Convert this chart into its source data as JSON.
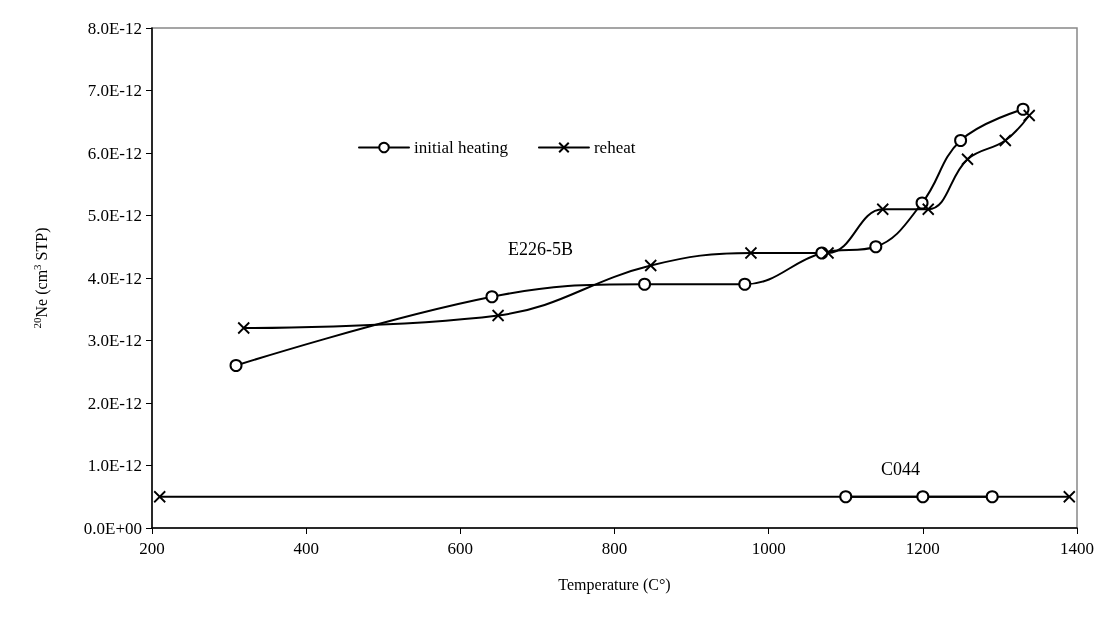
{
  "chart_data": {
    "type": "line",
    "xlabel": "Temperature (C°)",
    "ylabel": "$^{20}$Ne (cm$^{3}$ STP)",
    "xlim": [
      200,
      1400
    ],
    "xticks": [
      200,
      400,
      600,
      800,
      1000,
      1200,
      1400
    ],
    "ylim": [
      0,
      8e-12
    ],
    "yticks": [
      {
        "value": 0,
        "label": "0.0E+00"
      },
      {
        "value": 1e-12,
        "label": "1.0E-12"
      },
      {
        "value": 2e-12,
        "label": "2.0E-12"
      },
      {
        "value": 3e-12,
        "label": "3.0E-12"
      },
      {
        "value": 4e-12,
        "label": "4.0E-12"
      },
      {
        "value": 5e-12,
        "label": "5.0E-12"
      },
      {
        "value": 6e-12,
        "label": "6.0E-12"
      },
      {
        "value": 7e-12,
        "label": "7.0E-12"
      },
      {
        "value": 8e-12,
        "label": "8.0E-12"
      }
    ],
    "grid": false,
    "legend": "top",
    "line_style": "solid",
    "series": [
      {
        "name": "initial heating",
        "color": "#000000",
        "marker": "circle",
        "x": [
          309,
          641,
          839,
          969,
          1069,
          1139,
          1199,
          1249,
          1330
        ],
        "values": [
          2.6e-12,
          3.7e-12,
          3.9e-12,
          3.9e-12,
          4.4e-12,
          4.5e-12,
          5.2e-12,
          6.2e-12,
          6.7e-12
        ]
      },
      {
        "name": "reheat",
        "color": "#000000",
        "marker": "cross",
        "x": [
          319,
          649,
          847,
          977,
          1077,
          1148,
          1207,
          1258,
          1307,
          1338
        ],
        "values": [
          3.2e-12,
          3.4e-12,
          4.2e-12,
          4.4e-12,
          4.4e-12,
          5.1e-12,
          5.1e-12,
          5.9e-12,
          6.2e-12,
          6.6e-12
        ]
      },
      {
        "color": "#000000",
        "marker": "circle",
        "x": [
          1100,
          1200,
          1290
        ],
        "values": [
          5e-13,
          5e-13,
          5e-13
        ]
      },
      {
        "color": "#000000",
        "marker": "cross",
        "x": [
          210,
          1390
        ],
        "values": [
          5e-13,
          5e-13
        ]
      }
    ],
    "annotations": [
      "E226-5B",
      "C044"
    ]
  }
}
